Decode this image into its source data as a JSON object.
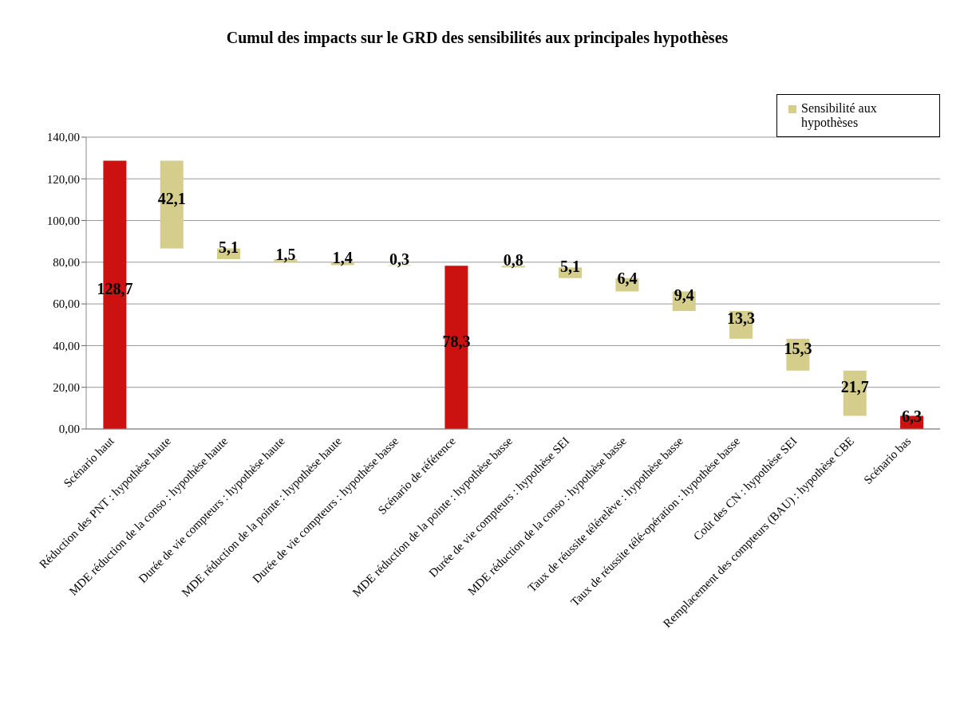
{
  "chart_data": {
    "type": "bar",
    "title": "Cumul des impacts sur le GRD des sensibilités aux principales hypothèses",
    "categories": [
      "Scénario haut",
      "Réduction des PNT : hypothèse haute",
      "MDE réduction de la conso : hypothèse haute",
      "Durée de vie compteurs : hypothèse haute",
      "MDE réduction de la pointe : hypothèse haute",
      "Durée de vie compteurs : hypothèse basse",
      "Scénario de référence",
      "MDE réduction de la pointe : hypothèse basse",
      "Durée de vie compteurs : hypothèse SEI",
      "MDE réduction de la conso : hypothèse basse",
      "Taux de réussite télérelève : hypothèse basse",
      "Taux de réussite télé-opération : hypothèse basse",
      "Coût des CN : hypothèse SEI",
      "Remplacement des compteurs (BAU) : hypothèse CBE",
      "Scénario bas"
    ],
    "series": [
      {
        "color": "#cc1111",
        "base": [
          0,
          null,
          null,
          null,
          null,
          null,
          0,
          null,
          null,
          null,
          null,
          null,
          null,
          null,
          0
        ],
        "values": [
          128.7,
          null,
          null,
          null,
          null,
          null,
          78.3,
          null,
          null,
          null,
          null,
          null,
          null,
          null,
          6.3
        ],
        "value_labels": [
          "128,7",
          null,
          null,
          null,
          null,
          null,
          "78,3",
          null,
          null,
          null,
          null,
          null,
          null,
          null,
          "6,3"
        ]
      },
      {
        "name": "Sensibilité aux hypothèses",
        "color": "#d4cd8c",
        "base": [
          null,
          86.6,
          81.5,
          80.0,
          78.6,
          78.3,
          null,
          77.5,
          72.4,
          66.0,
          56.6,
          43.3,
          28.0,
          6.3,
          null
        ],
        "values": [
          null,
          42.1,
          5.1,
          1.5,
          1.4,
          0.3,
          null,
          0.8,
          5.1,
          6.4,
          9.4,
          13.3,
          15.3,
          21.7,
          null
        ],
        "value_labels": [
          null,
          "42,1",
          "5,1",
          "1,5",
          "1,4",
          "0,3",
          null,
          "0,8",
          "5,1",
          "6,4",
          "9,4",
          "13,3",
          "15,3",
          "21,7",
          null
        ]
      }
    ],
    "ylim": [
      0,
      140
    ],
    "yticks": [
      {
        "value": 0,
        "label": "0,00"
      },
      {
        "value": 20,
        "label": "20,00"
      },
      {
        "value": 40,
        "label": "40,00"
      },
      {
        "value": 60,
        "label": "60,00"
      },
      {
        "value": 80,
        "label": "80,00"
      },
      {
        "value": 100,
        "label": "100,00"
      },
      {
        "value": 120,
        "label": "120,00"
      },
      {
        "value": 140,
        "label": "140,00"
      }
    ],
    "grid": "y",
    "legend": "top right"
  }
}
